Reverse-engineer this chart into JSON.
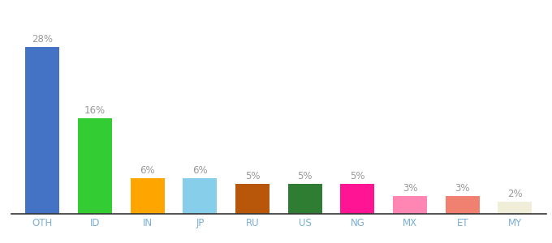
{
  "categories": [
    "OTH",
    "ID",
    "IN",
    "JP",
    "RU",
    "US",
    "NG",
    "MX",
    "ET",
    "MY"
  ],
  "values": [
    28,
    16,
    6,
    6,
    5,
    5,
    5,
    3,
    3,
    2
  ],
  "bar_colors": [
    "#4472C4",
    "#33CC33",
    "#FFA500",
    "#87CEEB",
    "#B8560A",
    "#2E7D32",
    "#FF1493",
    "#FF85B3",
    "#F08070",
    "#F0EDD8"
  ],
  "label_color": "#999999",
  "tick_color": "#7BAFD4",
  "label_fontsize": 8.5,
  "tick_fontsize": 8.5,
  "bar_width": 0.65,
  "ylim": [
    0,
    33
  ],
  "background_color": "#ffffff"
}
